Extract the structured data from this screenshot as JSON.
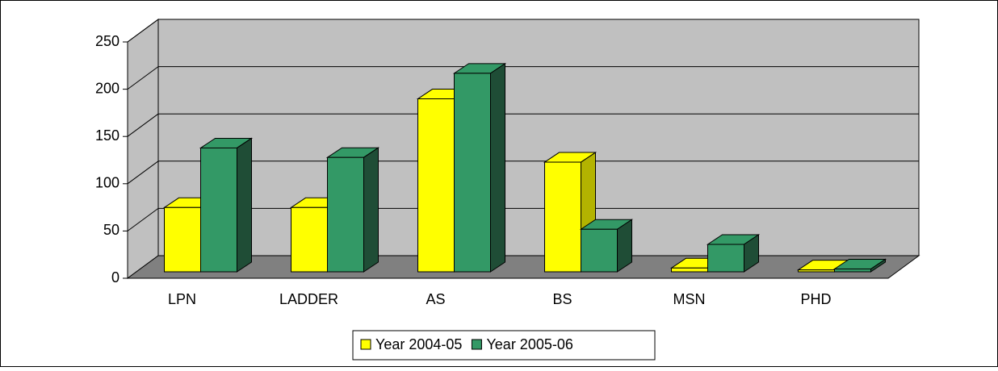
{
  "chart_data": {
    "type": "bar3d",
    "categories": [
      "LPN",
      "LADDER",
      "AS",
      "BS",
      "MSN",
      "PHD"
    ],
    "series": [
      {
        "name": "Year 2004-05",
        "color": "#ffff00",
        "side": "#b3b300",
        "values": [
          68,
          68,
          183,
          116,
          4,
          2
        ]
      },
      {
        "name": "Year 2005-06",
        "color": "#339966",
        "side": "#1f4d36",
        "values": [
          131,
          121,
          210,
          45,
          29,
          3
        ]
      }
    ],
    "ylim": [
      0,
      250
    ],
    "yticks": [
      0,
      50,
      100,
      150,
      200,
      250
    ],
    "grid": true,
    "legend": "bottom"
  }
}
